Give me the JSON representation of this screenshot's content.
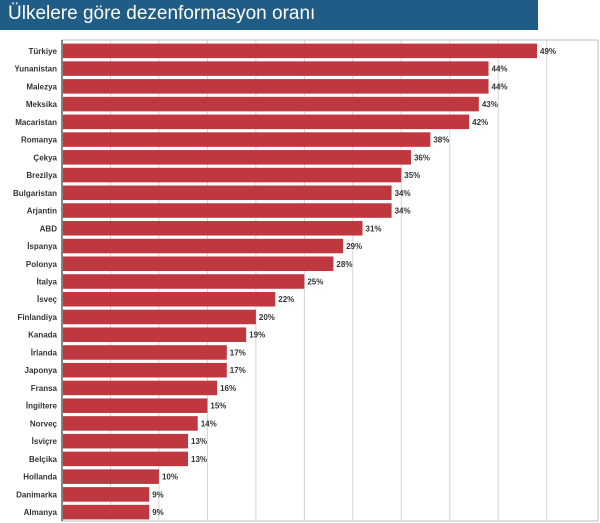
{
  "title": "Ülkelere göre dezenformasyon oranı",
  "colors": {
    "bar": "#c0383f",
    "header": "#1f5c86",
    "grid": "#d4d4d4"
  },
  "chart_data": {
    "type": "bar",
    "orientation": "horizontal",
    "title": "Ülkelere göre dezenformasyon oranı",
    "xlabel": "",
    "ylabel": "",
    "xlim": [
      0,
      50
    ],
    "grid": true,
    "value_suffix": "%",
    "categories": [
      "Türkiye",
      "Yunanistan",
      "Malezya",
      "Meksika",
      "Macaristan",
      "Romanya",
      "Çekya",
      "Brezilya",
      "Bulgaristan",
      "Arjantin",
      "ABD",
      "İspanya",
      "Polonya",
      "İtalya",
      "İsveç",
      "Finlandiya",
      "Kanada",
      "İrlanda",
      "Japonya",
      "Fransa",
      "İngiltere",
      "Norveç",
      "İsviçre",
      "Belçika",
      "Hollanda",
      "Danimarka",
      "Almanya"
    ],
    "values": [
      49,
      44,
      44,
      43,
      42,
      38,
      36,
      35,
      34,
      34,
      31,
      29,
      28,
      25,
      22,
      20,
      19,
      17,
      17,
      16,
      15,
      14,
      13,
      13,
      10,
      9,
      9
    ],
    "labels": [
      "49%",
      "44%",
      "44%",
      "43%",
      "42%",
      "38%",
      "36%",
      "35%",
      "34%",
      "34%",
      "31%",
      "29%",
      "28%",
      "25%",
      "22%",
      "20%",
      "19%",
      "17%",
      "17%",
      "16%",
      "15%",
      "14%",
      "13%",
      "13%",
      "10%",
      "9%",
      "9%"
    ]
  }
}
